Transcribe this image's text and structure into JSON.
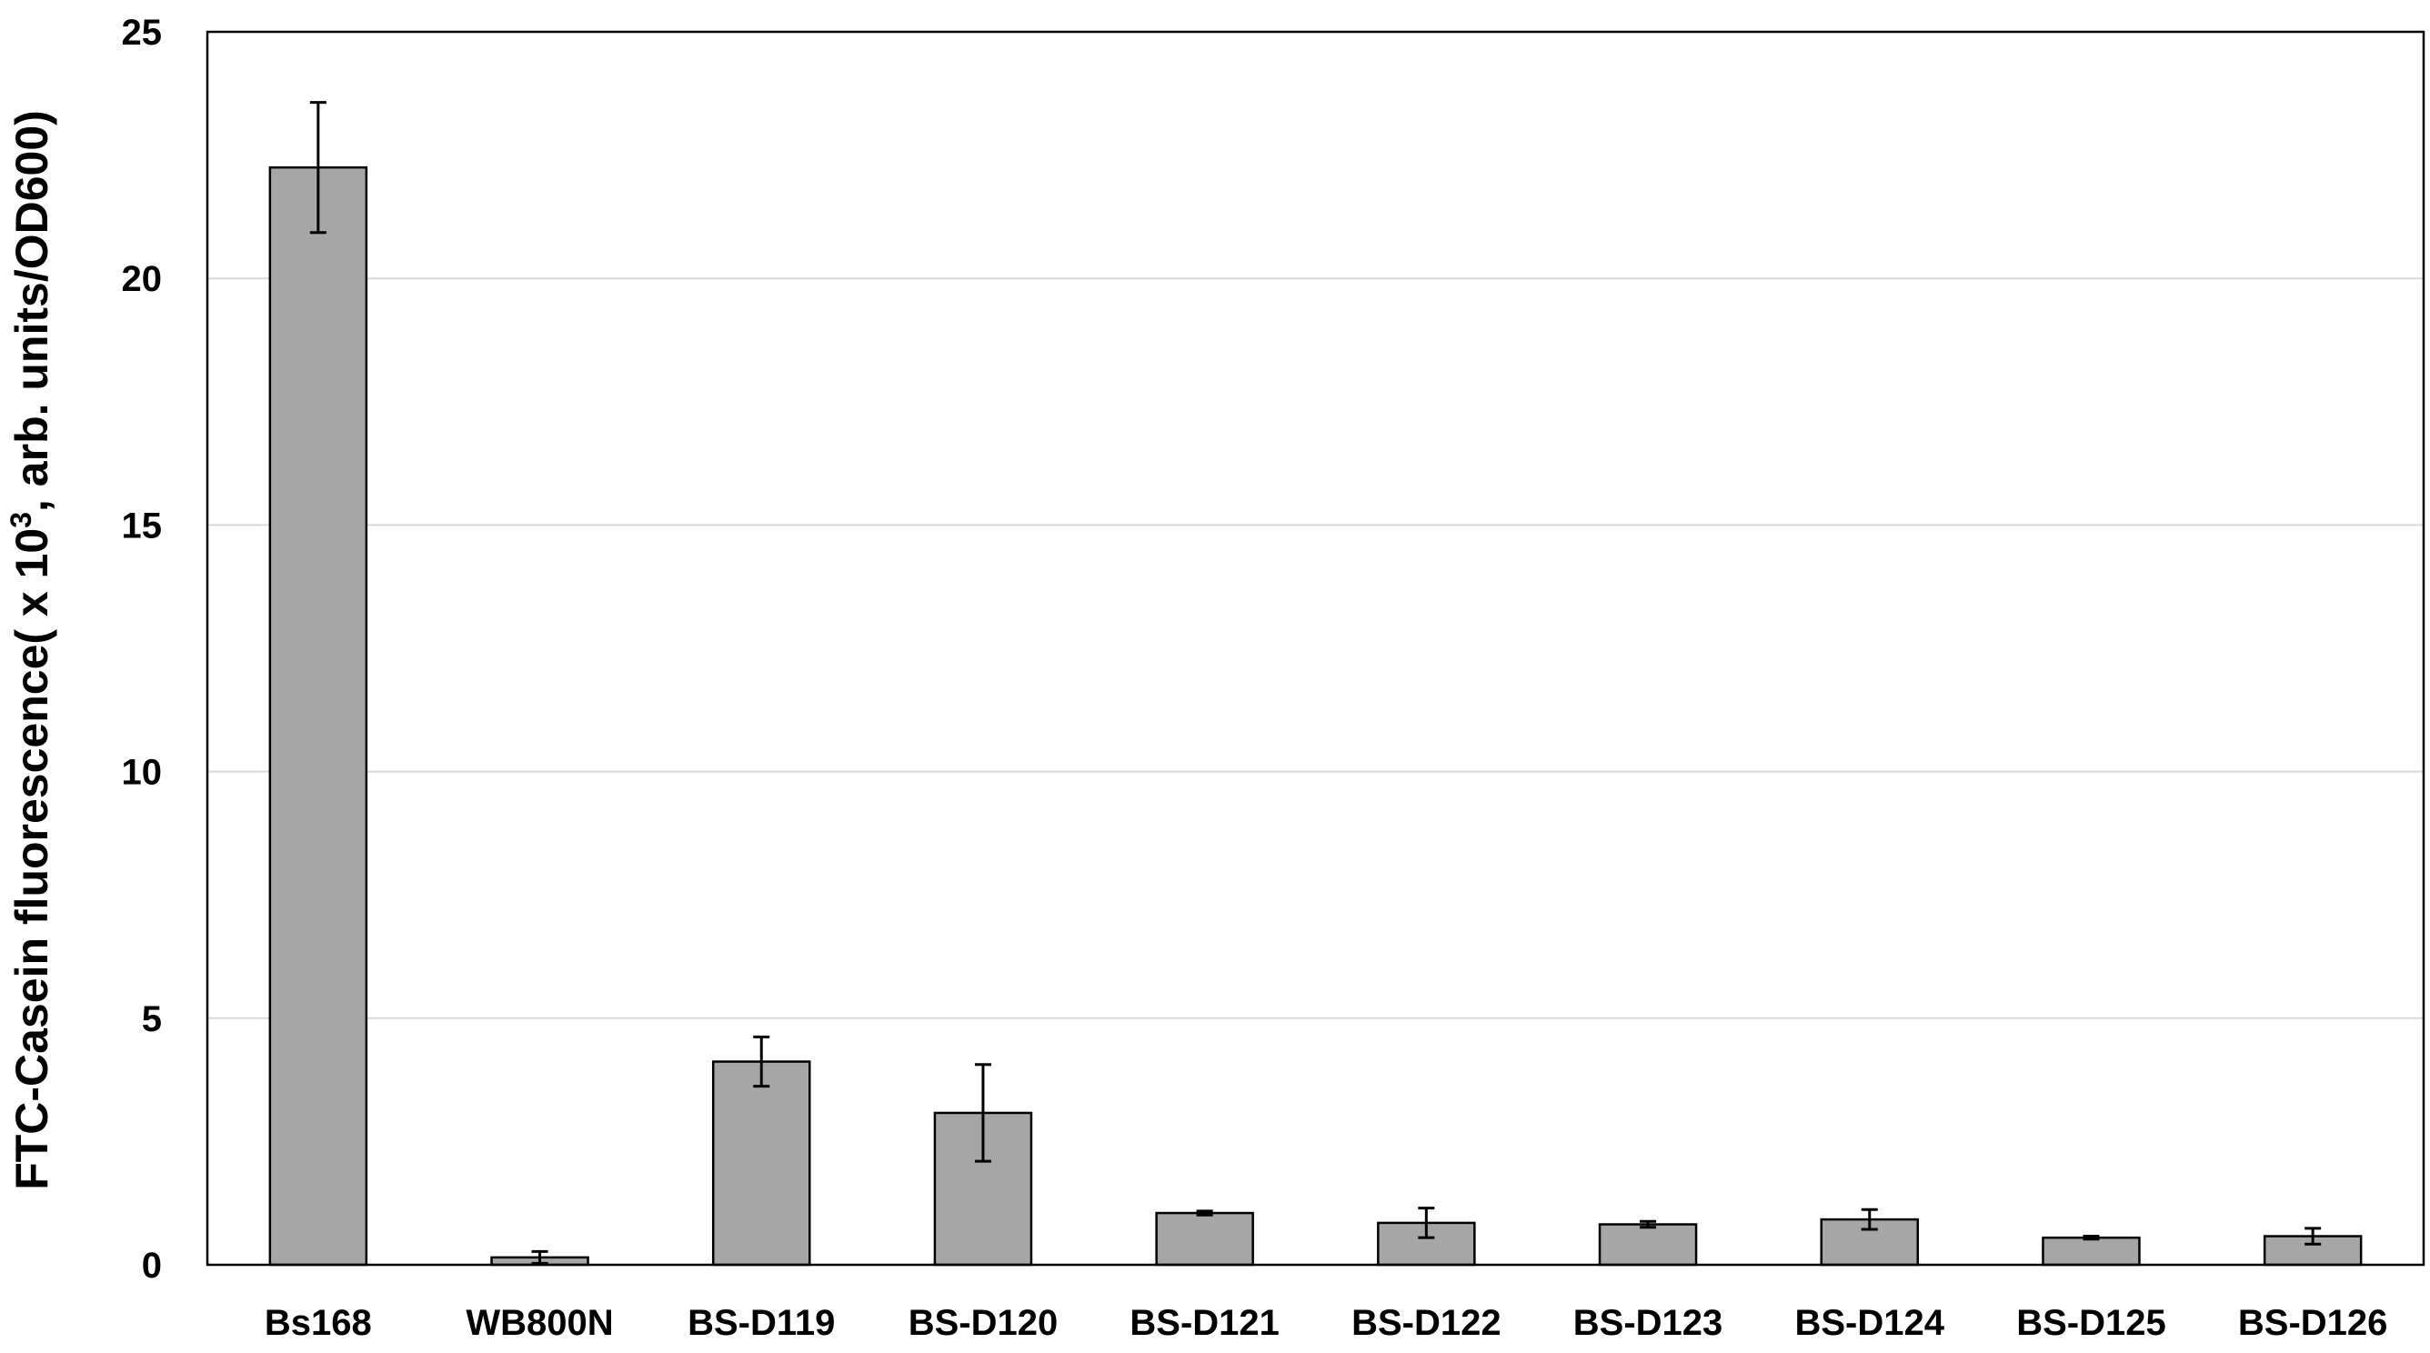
{
  "chart_data": {
    "type": "bar",
    "title": "",
    "xlabel": "",
    "ylabel": {
      "prefix": "FTC-Casein fluorescence( x 10",
      "superscript": "3",
      "suffix": ", arb. units/OD600)"
    },
    "ylim": [
      0,
      25
    ],
    "yticks": [
      0,
      5,
      10,
      15,
      20,
      25
    ],
    "grid": true,
    "legend": "none",
    "categories": [
      "Bs168",
      "WB800N",
      "BS-D119",
      "BS-D120",
      "BS-D121",
      "BS-D122",
      "BS-D123",
      "BS-D124",
      "BS-D125",
      "BS-D126"
    ],
    "series": [
      {
        "values": [
          22.25,
          0.15,
          4.12,
          3.08,
          1.05,
          0.85,
          0.82,
          0.92,
          0.55,
          0.58
        ],
        "errors": [
          1.32,
          0.12,
          0.5,
          0.98,
          0.04,
          0.3,
          0.06,
          0.2,
          0.03,
          0.16
        ],
        "color": "#a6a6a6"
      }
    ]
  }
}
